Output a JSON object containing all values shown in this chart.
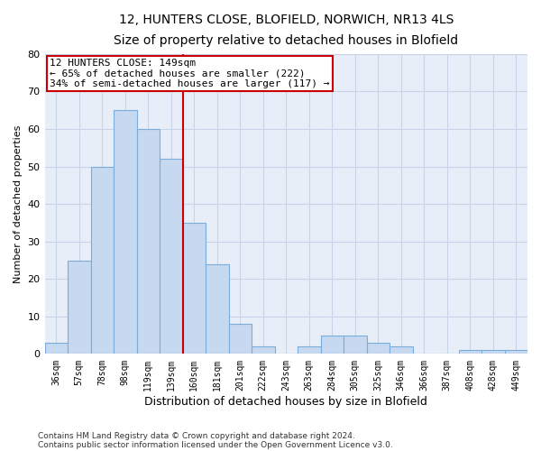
{
  "title1": "12, HUNTERS CLOSE, BLOFIELD, NORWICH, NR13 4LS",
  "title2": "Size of property relative to detached houses in Blofield",
  "xlabel": "Distribution of detached houses by size in Blofield",
  "ylabel": "Number of detached properties",
  "footnote1": "Contains HM Land Registry data © Crown copyright and database right 2024.",
  "footnote2": "Contains public sector information licensed under the Open Government Licence v3.0.",
  "categories": [
    "36sqm",
    "57sqm",
    "78sqm",
    "98sqm",
    "119sqm",
    "139sqm",
    "160sqm",
    "181sqm",
    "201sqm",
    "222sqm",
    "243sqm",
    "263sqm",
    "284sqm",
    "305sqm",
    "325sqm",
    "346sqm",
    "366sqm",
    "387sqm",
    "408sqm",
    "428sqm",
    "449sqm"
  ],
  "values": [
    3,
    25,
    50,
    65,
    60,
    52,
    35,
    24,
    8,
    2,
    0,
    2,
    5,
    5,
    3,
    2,
    0,
    0,
    1,
    1,
    1
  ],
  "bar_color": "#c6d9f0",
  "bar_edge_color": "#7aadda",
  "vline_color": "#cc0000",
  "annotation_text": "12 HUNTERS CLOSE: 149sqm\n← 65% of detached houses are smaller (222)\n34% of semi-detached houses are larger (117) →",
  "annotation_box_color": "white",
  "annotation_box_edge": "#cc0000",
  "ylim": [
    0,
    80
  ],
  "yticks": [
    0,
    10,
    20,
    30,
    40,
    50,
    60,
    70,
    80
  ],
  "grid_color": "#c8d4e8",
  "bg_color": "#e8eef8",
  "title1_fontsize": 10,
  "title2_fontsize": 9
}
